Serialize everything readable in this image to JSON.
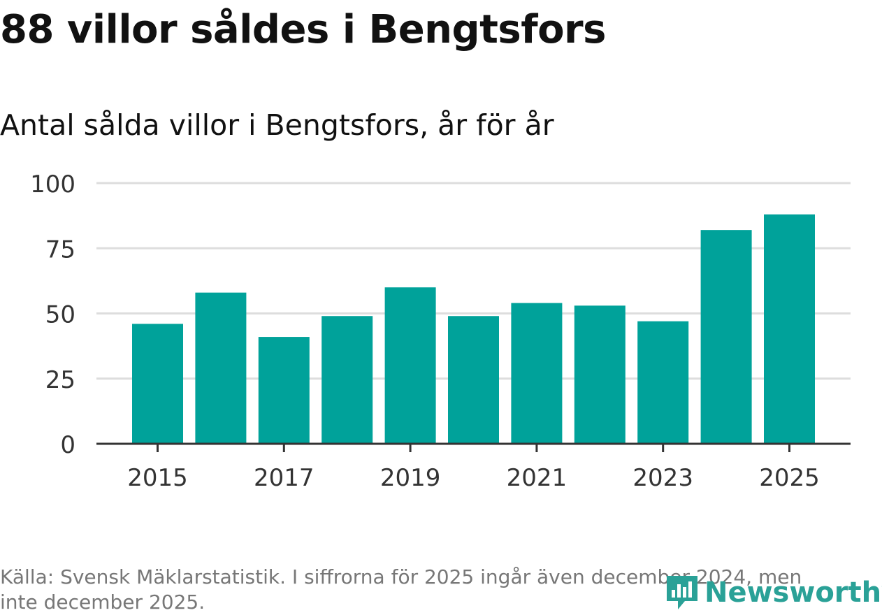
{
  "title": "88 villor såldes i Bengtsfors",
  "subtitle": "Antal sålda villor i Bengtsfors, år för år",
  "footer": "Källa: Svensk Mäklarstatistik. I siffrorna för 2025 ingår även december 2024, men inte december 2025.",
  "logo": {
    "text": "Newsworthy",
    "icon": "newsworthy-logo-icon"
  },
  "colors": {
    "bar": "#00a29a",
    "grid": "#dddddd",
    "axis": "#333333",
    "logo": "#2aa197"
  },
  "chart_data": {
    "type": "bar",
    "categories": [
      "2015",
      "2016",
      "2017",
      "2018",
      "2019",
      "2020",
      "2021",
      "2022",
      "2023",
      "2024",
      "2025"
    ],
    "values": [
      46,
      58,
      41,
      49,
      60,
      49,
      54,
      53,
      47,
      82,
      88
    ],
    "x_tick_labels": [
      "2015",
      "2017",
      "2019",
      "2021",
      "2023",
      "2025"
    ],
    "y_ticks": [
      0,
      25,
      50,
      75,
      100
    ],
    "ylim": [
      0,
      100
    ],
    "title": "88 villor såldes i Bengtsfors",
    "xlabel": "",
    "ylabel": ""
  }
}
